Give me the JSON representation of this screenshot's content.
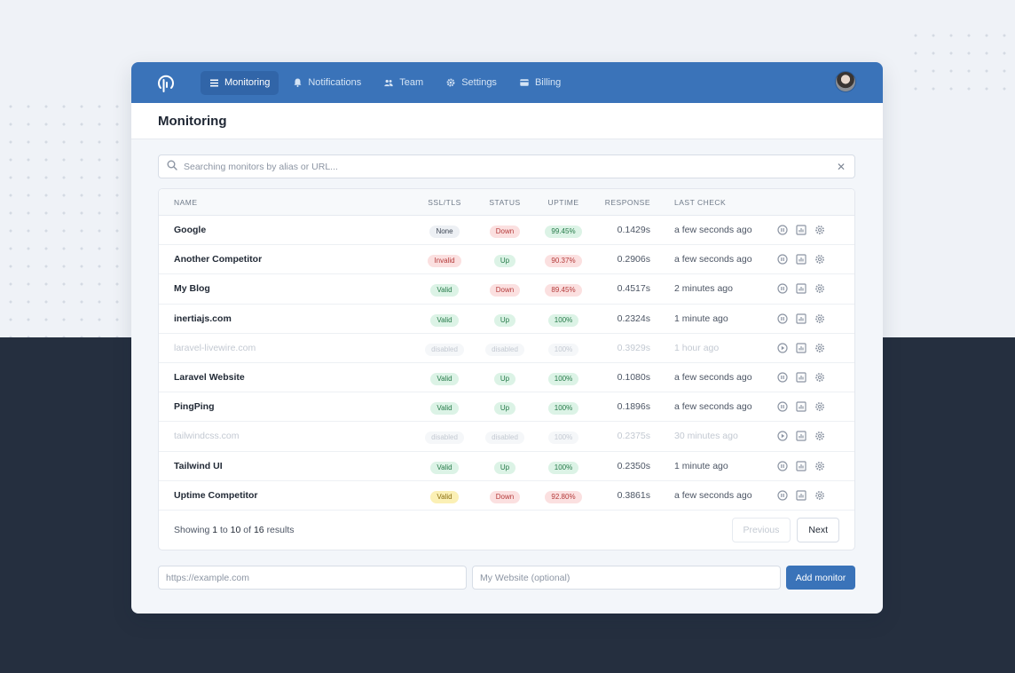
{
  "nav": {
    "items": [
      {
        "label": "Monitoring",
        "icon": "list-icon",
        "active": true
      },
      {
        "label": "Notifications",
        "icon": "bell-icon",
        "active": false
      },
      {
        "label": "Team",
        "icon": "users-icon",
        "active": false
      },
      {
        "label": "Settings",
        "icon": "gear-icon",
        "active": false
      },
      {
        "label": "Billing",
        "icon": "credit-card-icon",
        "active": false
      }
    ]
  },
  "page": {
    "title": "Monitoring"
  },
  "search": {
    "placeholder": "Searching monitors by alias or URL...",
    "value": ""
  },
  "table": {
    "headers": {
      "name": "NAME",
      "ssl": "SSL/TLS",
      "status": "STATUS",
      "uptime": "UPTIME",
      "response": "RESPONSE",
      "last_check": "LAST CHECK"
    },
    "rows": [
      {
        "name": "Google",
        "ssl": "None",
        "status": "Down",
        "uptime": "99.45%",
        "response": "0.1429s",
        "last_check": "a few seconds ago"
      },
      {
        "name": "Another Competitor",
        "ssl": "Invalid",
        "status": "Up",
        "uptime": "90.37%",
        "response": "0.2906s",
        "last_check": "a few seconds ago"
      },
      {
        "name": "My Blog",
        "ssl": "Valid",
        "status": "Down",
        "uptime": "89.45%",
        "response": "0.4517s",
        "last_check": "2 minutes ago"
      },
      {
        "name": "inertiajs.com",
        "ssl": "Valid",
        "status": "Up",
        "uptime": "100%",
        "response": "0.2324s",
        "last_check": "1 minute ago"
      },
      {
        "name": "laravel-livewire.com",
        "ssl": "disabled",
        "status": "disabled",
        "uptime": "100%",
        "response": "0.3929s",
        "last_check": "1 hour ago"
      },
      {
        "name": "Laravel Website",
        "ssl": "Valid",
        "status": "Up",
        "uptime": "100%",
        "response": "0.1080s",
        "last_check": "a few seconds ago"
      },
      {
        "name": "PingPing",
        "ssl": "Valid",
        "status": "Up",
        "uptime": "100%",
        "response": "0.1896s",
        "last_check": "a few seconds ago"
      },
      {
        "name": "tailwindcss.com",
        "ssl": "disabled",
        "status": "disabled",
        "uptime": "100%",
        "response": "0.2375s",
        "last_check": "30 minutes ago"
      },
      {
        "name": "Tailwind UI",
        "ssl": "Valid",
        "status": "Up",
        "uptime": "100%",
        "response": "0.2350s",
        "last_check": "1 minute ago"
      },
      {
        "name": "Uptime Competitor",
        "ssl": "Valid",
        "status": "Down",
        "uptime": "92.80%",
        "response": "0.3861s",
        "last_check": "a few seconds ago"
      }
    ]
  },
  "pagination": {
    "showing_prefix": "Showing",
    "from": "1",
    "to_word": "to",
    "to": "10",
    "of_word": "of",
    "total": "16",
    "suffix": "results",
    "previous": "Previous",
    "next": "Next"
  },
  "add_monitor": {
    "url_placeholder": "https://example.com",
    "alias_placeholder": "My Website (optional)",
    "button": "Add monitor"
  },
  "colors": {
    "brand": "#3a73b9",
    "dark_bg": "#252f3f",
    "light_bg": "#eff2f7"
  }
}
